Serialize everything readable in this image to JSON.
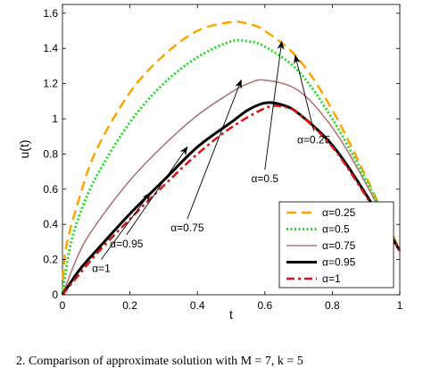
{
  "chart_data": {
    "type": "line",
    "xlabel": "t",
    "ylabel": "u(t)",
    "xlim": [
      0,
      1
    ],
    "ylim": [
      0,
      1.65
    ],
    "xticks": [
      0,
      0.2,
      0.4,
      0.6,
      0.8,
      1
    ],
    "xtick_labels": [
      "0",
      "0.2",
      "0.4",
      "0.6",
      "0.8",
      "1"
    ],
    "yticks": [
      0,
      0.2,
      0.4,
      0.6,
      0.8,
      1,
      1.2,
      1.4,
      1.6
    ],
    "ytick_labels": [
      "0",
      "0.2",
      "0.4",
      "0.6",
      "0.8",
      "1",
      "1.2",
      "1.4",
      "1.6"
    ],
    "grid": false,
    "legend_position": "bottom-right",
    "series": [
      {
        "name": "α=0.25",
        "color": "#FFA500",
        "style": "dashed",
        "x": [
          0,
          0.01,
          0.05,
          0.1,
          0.2,
          0.3,
          0.4,
          0.5,
          0.55,
          0.6,
          0.7,
          0.8,
          0.9,
          1
        ],
        "y": [
          0,
          0.26,
          0.55,
          0.82,
          1.15,
          1.36,
          1.5,
          1.55,
          1.54,
          1.5,
          1.34,
          1.05,
          0.67,
          0.25
        ]
      },
      {
        "name": "α=0.5",
        "color": "#22DD22",
        "style": "dotted",
        "x": [
          0,
          0.02,
          0.05,
          0.1,
          0.2,
          0.3,
          0.4,
          0.5,
          0.55,
          0.6,
          0.7,
          0.8,
          0.9,
          1
        ],
        "y": [
          0,
          0.25,
          0.45,
          0.67,
          0.98,
          1.2,
          1.35,
          1.44,
          1.44,
          1.41,
          1.27,
          1.0,
          0.65,
          0.25
        ]
      },
      {
        "name": "α=0.75",
        "color": "#B07878",
        "style": "solid",
        "x": [
          0,
          0.05,
          0.1,
          0.2,
          0.3,
          0.4,
          0.5,
          0.55,
          0.6,
          0.7,
          0.8,
          0.9,
          1
        ],
        "y": [
          0,
          0.24,
          0.4,
          0.65,
          0.85,
          1.02,
          1.15,
          1.2,
          1.22,
          1.16,
          0.95,
          0.63,
          0.25
        ]
      },
      {
        "name": "α=0.95",
        "color": "#000000",
        "style": "solid-thick",
        "x": [
          0,
          0.05,
          0.1,
          0.2,
          0.3,
          0.4,
          0.5,
          0.55,
          0.6,
          0.65,
          0.7,
          0.8,
          0.9,
          1
        ],
        "y": [
          0,
          0.14,
          0.25,
          0.46,
          0.65,
          0.84,
          0.98,
          1.05,
          1.09,
          1.08,
          1.03,
          0.85,
          0.57,
          0.25
        ]
      },
      {
        "name": "α=1",
        "color": "#DD1111",
        "style": "dashdot",
        "x": [
          0,
          0.1,
          0.2,
          0.3,
          0.4,
          0.5,
          0.6,
          0.65,
          0.7,
          0.8,
          0.9,
          1
        ],
        "y": [
          0,
          0.23,
          0.43,
          0.62,
          0.8,
          0.95,
          1.06,
          1.07,
          1.03,
          0.84,
          0.56,
          0.25
        ]
      }
    ],
    "annotations": [
      {
        "text": "α=0.25",
        "text_xy": [
          0.745,
          0.88
        ],
        "arrow_to": [
          0.69,
          1.36
        ]
      },
      {
        "text": "α=0.5",
        "text_xy": [
          0.6,
          0.66
        ],
        "arrow_to": [
          0.65,
          1.44
        ]
      },
      {
        "text": "α=0.75",
        "text_xy": [
          0.37,
          0.38
        ],
        "arrow_to": [
          0.53,
          1.22
        ]
      },
      {
        "text": "α=0.95",
        "text_xy": [
          0.19,
          0.29
        ],
        "arrow_to": [
          0.37,
          0.84
        ]
      },
      {
        "text": "α=1",
        "text_xy": [
          0.115,
          0.15
        ],
        "arrow_to": [
          0.26,
          0.58
        ]
      }
    ]
  },
  "caption": "2.   Comparison of approximate solution with M = 7, k = 5"
}
